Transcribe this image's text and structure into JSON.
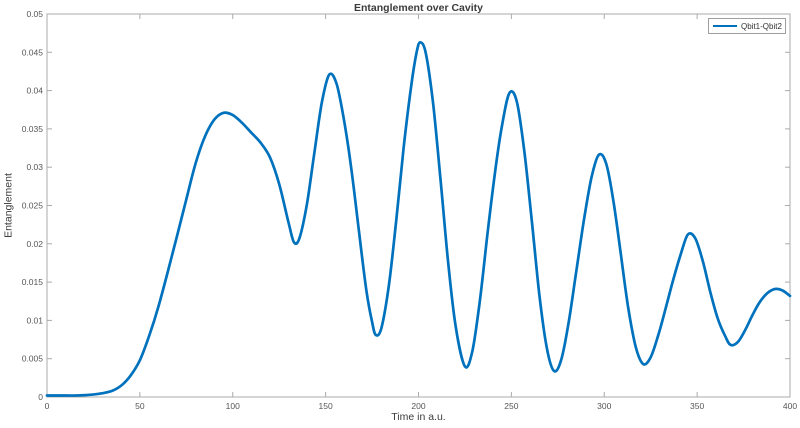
{
  "colors": {
    "background": "#ffffff",
    "axis_box": "#ababab",
    "tick_label": "#565656",
    "axis_label": "#3b3b3b",
    "series_blue": "#0072BD",
    "legend_border": "#9e9e9e"
  },
  "chart_data": {
    "type": "line",
    "title": "Entanglement over Cavity",
    "xlabel": "Time in a.u.",
    "ylabel": "Entanglement",
    "xlim": [
      0,
      400
    ],
    "ylim": [
      0,
      0.05
    ],
    "xticks": [
      0,
      50,
      100,
      150,
      200,
      250,
      300,
      350,
      400
    ],
    "xtick_labels": [
      "0",
      "50",
      "100",
      "150",
      "200",
      "250",
      "300",
      "350",
      "400"
    ],
    "yticks": [
      0,
      0.005,
      0.01,
      0.015,
      0.02,
      0.025,
      0.03,
      0.035,
      0.04,
      0.045,
      0.05
    ],
    "ytick_labels": [
      "0",
      "0.005",
      "0.01",
      "0.015",
      "0.02",
      "0.025",
      "0.03",
      "0.035",
      "0.04",
      "0.045",
      "0.05"
    ],
    "grid": false,
    "box": true,
    "tick_dir": "in",
    "legend": {
      "position": "top-right",
      "entries": [
        "Qbit1-Qbit2"
      ]
    },
    "series": [
      {
        "name": "Qbit1-Qbit2",
        "color": "#0072BD",
        "line_width": 2.7,
        "x": [
          0,
          8,
          16,
          24,
          30,
          35,
          40,
          45,
          50,
          55,
          60,
          65,
          70,
          75,
          80,
          85,
          90,
          95,
          100,
          105,
          110,
          115,
          120,
          125,
          130,
          133,
          136,
          140,
          144,
          148,
          152,
          156,
          160,
          164,
          168,
          172,
          175,
          177,
          180,
          184,
          188,
          192,
          196,
          199,
          201,
          204,
          208,
          212,
          216,
          220,
          225,
          229,
          233,
          237,
          241,
          245,
          249,
          253,
          257,
          261,
          265,
          269,
          273,
          277,
          281,
          285,
          289,
          293,
          297,
          301,
          305,
          309,
          313,
          317,
          321,
          325,
          329,
          333,
          337,
          341,
          345,
          349,
          353,
          357,
          361,
          365,
          368,
          372,
          376,
          380,
          384,
          388,
          392,
          396,
          400
        ],
        "y": [
          0.0002,
          0.0002,
          0.0002,
          0.0003,
          0.0005,
          0.0008,
          0.0015,
          0.0028,
          0.0048,
          0.008,
          0.0118,
          0.0163,
          0.021,
          0.0258,
          0.0305,
          0.034,
          0.0362,
          0.0371,
          0.0368,
          0.0358,
          0.0345,
          0.0332,
          0.0313,
          0.0278,
          0.0228,
          0.0202,
          0.0208,
          0.0253,
          0.032,
          0.0385,
          0.0421,
          0.0408,
          0.036,
          0.0295,
          0.0215,
          0.0138,
          0.0098,
          0.0081,
          0.009,
          0.0145,
          0.023,
          0.0325,
          0.0405,
          0.045,
          0.0463,
          0.0448,
          0.038,
          0.028,
          0.0175,
          0.0092,
          0.004,
          0.006,
          0.0125,
          0.021,
          0.029,
          0.0355,
          0.0397,
          0.0385,
          0.032,
          0.023,
          0.0135,
          0.0065,
          0.0034,
          0.005,
          0.01,
          0.0165,
          0.023,
          0.0285,
          0.0316,
          0.0305,
          0.0255,
          0.0185,
          0.0115,
          0.0065,
          0.0043,
          0.0052,
          0.008,
          0.0115,
          0.0152,
          0.0185,
          0.0212,
          0.0207,
          0.0178,
          0.0138,
          0.0103,
          0.008,
          0.0068,
          0.0072,
          0.0088,
          0.0108,
          0.0125,
          0.0136,
          0.0141,
          0.0139,
          0.0132
        ]
      }
    ]
  }
}
